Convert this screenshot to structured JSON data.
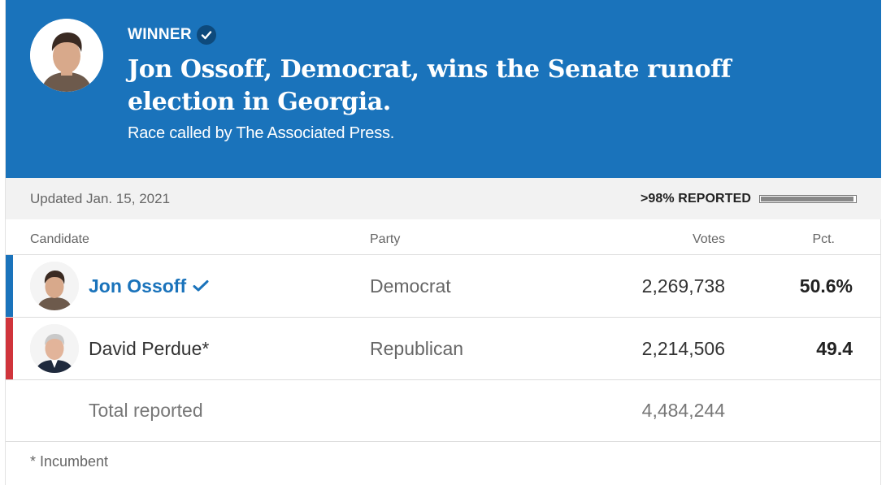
{
  "header": {
    "winner_label": "WINNER",
    "headline": "Jon Ossoff, Democrat, wins the Senate runoff election in Georgia.",
    "subhead": "Race called by The Associated Press.",
    "background_color": "#1a73bb"
  },
  "status": {
    "updated": "Updated Jan. 15, 2021",
    "reported": ">98% REPORTED",
    "reported_fraction": 0.98
  },
  "table": {
    "columns": {
      "candidate": "Candidate",
      "party": "Party",
      "votes": "Votes",
      "pct": "Pct."
    },
    "rows": [
      {
        "name": "Jon Ossoff",
        "party": "Democrat",
        "votes": "2,269,738",
        "pct": "50.6%",
        "winner": true,
        "party_color": "#1a73bb",
        "icons": [
          "headshot-icon",
          "check-icon"
        ]
      },
      {
        "name": "David Perdue*",
        "party": "Republican",
        "votes": "2,214,506",
        "pct": "49.4",
        "winner": false,
        "party_color": "#d0343b",
        "icons": [
          "headshot-icon"
        ]
      }
    ],
    "total": {
      "label": "Total reported",
      "votes": "4,484,244"
    }
  },
  "footnote": "* Incumbent"
}
